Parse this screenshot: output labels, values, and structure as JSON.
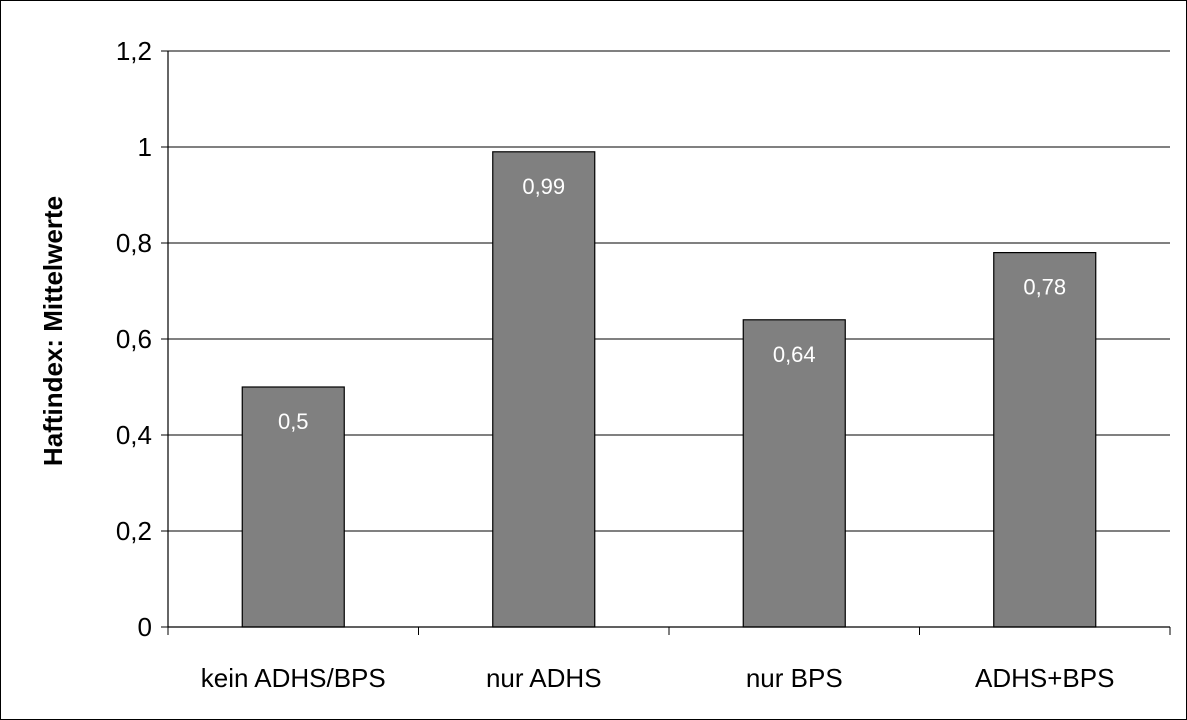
{
  "chart_data": {
    "type": "bar",
    "categories": [
      "kein ADHS/BPS",
      "nur ADHS",
      "nur BPS",
      "ADHS+BPS"
    ],
    "values": [
      0.5,
      0.99,
      0.64,
      0.78
    ],
    "data_labels": [
      "0,5",
      "0,99",
      "0,64",
      "0,78"
    ],
    "ylabel": "Haftindex: Mittelwerte",
    "xlabel": "",
    "ylim": [
      0,
      1.2
    ],
    "yticks": [
      0,
      0.2,
      0.4,
      0.6,
      0.8,
      1,
      1.2
    ],
    "ytick_labels": [
      "0",
      "0,2",
      "0,4",
      "0,6",
      "0,8",
      "1",
      "1,2"
    ],
    "grid": true,
    "legend": "none",
    "colors": {
      "bar_fill": "#808080",
      "bar_stroke": "#000000",
      "label_text": "#ffffff",
      "axis": "#000000",
      "grid": "#000000"
    }
  }
}
